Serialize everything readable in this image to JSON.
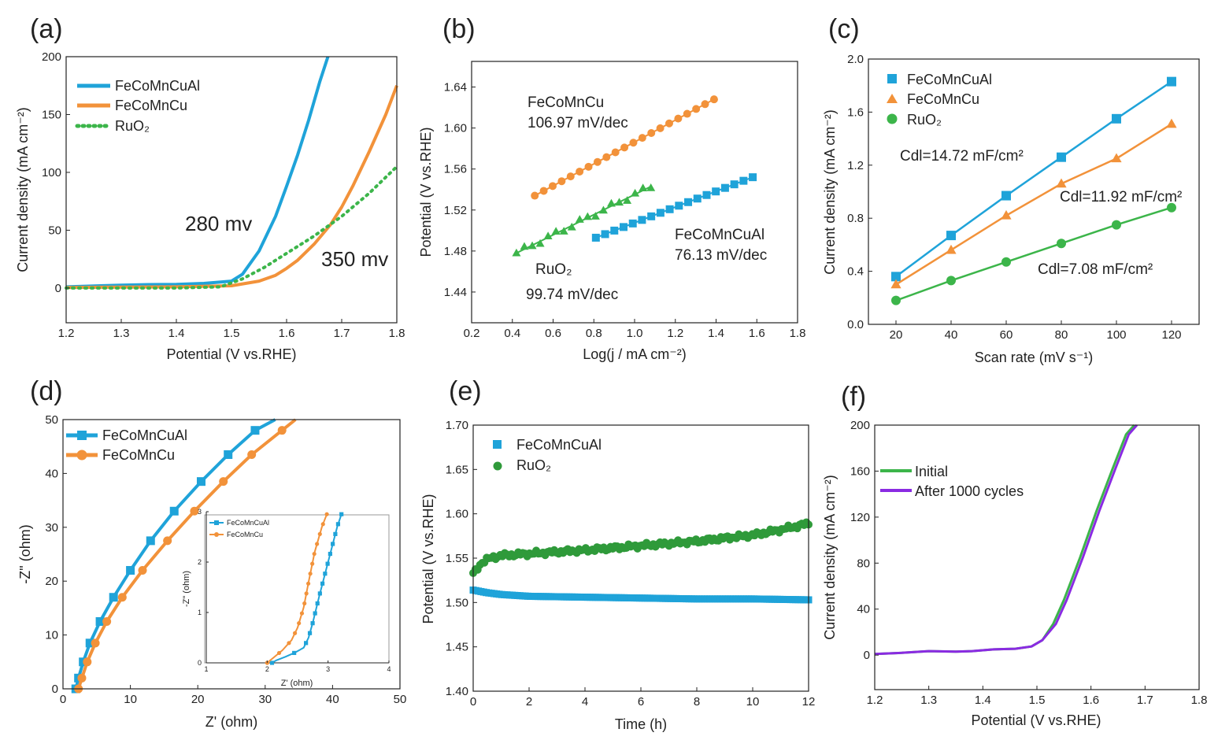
{
  "colors": {
    "blue": "#1fa3d9",
    "orange": "#f2923a",
    "green": "#3cb54a",
    "dark_green": "#2f9a3a",
    "purple": "#8a2be2",
    "axis": "#222222"
  },
  "chart_data": [
    {
      "id": "a",
      "type": "line",
      "panel_label": "(a)",
      "xlabel": "Potential (V vs.RHE)",
      "ylabel": "Current density (mA cm⁻²)",
      "xlim": [
        1.2,
        1.8
      ],
      "ylim": [
        -30,
        200
      ],
      "xticks": [
        1.2,
        1.3,
        1.4,
        1.5,
        1.6,
        1.7,
        1.8
      ],
      "xtick_labels": [
        "1.2",
        "1.3",
        "1.4",
        "1.5",
        "1.6",
        "1.7",
        "1.8"
      ],
      "yticks": [
        0,
        50,
        100,
        150,
        200
      ],
      "ytick_labels": [
        "0",
        "50",
        "100",
        "150",
        "200"
      ],
      "legend": [
        "FeCoMnCuAl",
        "FeCoMnCu",
        "RuO₂"
      ],
      "series": [
        {
          "name": "FeCoMnCuAl",
          "color": "blue",
          "style": "solid",
          "x": [
            1.2,
            1.3,
            1.35,
            1.4,
            1.45,
            1.5,
            1.52,
            1.55,
            1.58,
            1.6,
            1.62,
            1.64,
            1.66,
            1.675
          ],
          "y": [
            1,
            2.5,
            3,
            3.2,
            4,
            6,
            12,
            32,
            62,
            88,
            115,
            145,
            178,
            200
          ]
        },
        {
          "name": "FeCoMnCu",
          "color": "orange",
          "style": "solid",
          "x": [
            1.2,
            1.3,
            1.4,
            1.5,
            1.55,
            1.58,
            1.6,
            1.62,
            1.65,
            1.68,
            1.7,
            1.72,
            1.75,
            1.78,
            1.8
          ],
          "y": [
            0.5,
            0.8,
            1,
            2,
            6,
            11,
            17,
            24,
            38,
            55,
            70,
            88,
            118,
            150,
            175
          ]
        },
        {
          "name": "RuO₂",
          "color": "green",
          "style": "dotted",
          "x": [
            1.2,
            1.4,
            1.48,
            1.52,
            1.56,
            1.6,
            1.65,
            1.7,
            1.75,
            1.8
          ],
          "y": [
            0,
            0,
            1,
            8,
            18,
            30,
            45,
            62,
            82,
            105
          ]
        }
      ],
      "annotations": [
        {
          "text": "280 mv",
          "color": "blue"
        },
        {
          "text": "350 mv",
          "color": "orange"
        }
      ]
    },
    {
      "id": "b",
      "type": "scatter",
      "panel_label": "(b)",
      "xlabel": "Log(j / mA cm⁻²)",
      "ylabel": "Potential (V vs.RHE)",
      "xlim": [
        0.2,
        1.8
      ],
      "ylim": [
        1.41,
        1.665
      ],
      "xticks": [
        0.2,
        0.4,
        0.6,
        0.8,
        1.0,
        1.2,
        1.4,
        1.6,
        1.8
      ],
      "xtick_labels": [
        "0.2",
        "0.4",
        "0.6",
        "0.8",
        "1.0",
        "1.2",
        "1.4",
        "1.6",
        "1.8"
      ],
      "yticks": [
        1.44,
        1.48,
        1.52,
        1.56,
        1.6,
        1.64
      ],
      "ytick_labels": [
        "1.44",
        "1.48",
        "1.52",
        "1.56",
        "1.60",
        "1.64"
      ],
      "series": [
        {
          "name": "FeCoMnCu",
          "color": "orange",
          "marker": "circle",
          "x_range": [
            0.51,
            1.39
          ],
          "y_range": [
            1.534,
            1.628
          ],
          "n": 21
        },
        {
          "name": "RuO₂",
          "color": "green",
          "marker": "triangle",
          "x_range": [
            0.42,
            1.08
          ],
          "y_range": [
            1.478,
            1.543
          ],
          "n": 18
        },
        {
          "name": "FeCoMnCuAl",
          "color": "blue",
          "marker": "square",
          "x_range": [
            0.81,
            1.58
          ],
          "y_range": [
            1.493,
            1.552
          ],
          "n": 18
        }
      ],
      "annotations": [
        {
          "series": "FeCoMnCu",
          "name": "FeCoMnCu",
          "slope": "106.97 mV/dec"
        },
        {
          "series": "FeCoMnCuAl",
          "name": "FeCoMnCuAl",
          "slope": "76.13 mV/dec"
        },
        {
          "series": "RuO₂",
          "name": "RuO₂",
          "slope": "99.74 mV/dec"
        }
      ]
    },
    {
      "id": "c",
      "type": "scatter",
      "panel_label": "(c)",
      "xlabel": "Scan rate (mV s⁻¹)",
      "ylabel": "Current density (mA cm⁻²)",
      "xlim": [
        10,
        130
      ],
      "ylim": [
        0,
        2.0
      ],
      "xticks": [
        20,
        40,
        60,
        80,
        100,
        120
      ],
      "xtick_labels": [
        "20",
        "40",
        "60",
        "80",
        "100",
        "120"
      ],
      "yticks": [
        0,
        0.4,
        0.8,
        1.2,
        1.6,
        2.0
      ],
      "ytick_labels": [
        "0.0",
        "0.4",
        "0.8",
        "1.2",
        "1.6",
        "2.0"
      ],
      "legend": [
        "FeCoMnCuAl",
        "FeCoMnCu",
        "RuO₂"
      ],
      "x": [
        20,
        40,
        60,
        80,
        100,
        120
      ],
      "series": [
        {
          "name": "FeCoMnCuAl",
          "color": "blue",
          "marker": "square",
          "values": [
            0.36,
            0.67,
            0.97,
            1.26,
            1.55,
            1.83
          ]
        },
        {
          "name": "FeCoMnCu",
          "color": "orange",
          "marker": "triangle",
          "values": [
            0.3,
            0.56,
            0.82,
            1.06,
            1.25,
            1.51
          ]
        },
        {
          "name": "RuO₂",
          "color": "green",
          "marker": "circle",
          "values": [
            0.18,
            0.33,
            0.47,
            0.61,
            0.75,
            0.88
          ]
        }
      ],
      "annotations": [
        {
          "text": "Cdl=14.72 mF/cm²",
          "color": "blue"
        },
        {
          "text": "Cdl=11.92 mF/cm²",
          "color": "orange"
        },
        {
          "text": "Cdl=7.08 mF/cm²",
          "color": "green"
        }
      ]
    },
    {
      "id": "d",
      "type": "line",
      "panel_label": "(d)",
      "xlabel": "Z' (ohm)",
      "ylabel": "-Z\" (ohm)",
      "xlim": [
        0,
        50
      ],
      "ylim": [
        0,
        50
      ],
      "xticks": [
        0,
        10,
        20,
        30,
        40,
        50
      ],
      "xtick_labels": [
        "0",
        "10",
        "20",
        "30",
        "40",
        "50"
      ],
      "yticks": [
        0,
        10,
        20,
        30,
        40,
        50
      ],
      "ytick_labels": [
        "0",
        "10",
        "20",
        "30",
        "40",
        "50"
      ],
      "legend": [
        "FeCoMnCuAl",
        "FeCoMnCu"
      ],
      "series": [
        {
          "name": "FeCoMnCuAl",
          "color": "blue",
          "marker": "square",
          "x": [
            1.9,
            2.3,
            3,
            4,
            5.5,
            7.5,
            10,
            13,
            16.5,
            20.5,
            24.5,
            28.5,
            31.5
          ],
          "y": [
            0,
            2,
            5,
            8.5,
            12.5,
            17,
            22,
            27.5,
            33,
            38.5,
            43.5,
            48,
            50
          ]
        },
        {
          "name": "FeCoMnCu",
          "color": "orange",
          "marker": "circle",
          "x": [
            2.3,
            2.8,
            3.6,
            4.8,
            6.5,
            8.8,
            11.8,
            15.5,
            19.5,
            23.8,
            28,
            32.5,
            34.5
          ],
          "y": [
            0,
            2,
            5,
            8.5,
            12.5,
            17,
            22,
            27.5,
            33,
            38.5,
            43.5,
            48,
            50
          ]
        }
      ],
      "inset": {
        "xlim": [
          1,
          4
        ],
        "ylim": [
          0,
          3
        ],
        "xticks": [
          1,
          2,
          3,
          4
        ],
        "xtick_labels": [
          "1",
          "2",
          "3",
          "4"
        ],
        "yticks": [
          0,
          1,
          2,
          3
        ],
        "ytick_labels": [
          "0",
          "1",
          "2",
          "3"
        ],
        "xlabel": "Z' (ohm)",
        "ylabel": "-Z\" (ohm)",
        "legend": [
          "FeCoMnCuAl",
          "FeCoMnCu"
        ],
        "series": [
          {
            "name": "FeCoMnCuAl",
            "color": "blue",
            "x": [
              2.08,
              2.15,
              2.3,
              2.45,
              2.6,
              2.68,
              2.75,
              2.85,
              3.0,
              3.15,
              3.22
            ],
            "y": [
              0,
              0.05,
              0.12,
              0.2,
              0.3,
              0.5,
              0.8,
              1.3,
              2.0,
              2.7,
              2.95
            ]
          },
          {
            "name": "FeCoMnCu",
            "color": "orange",
            "x": [
              2.0,
              2.1,
              2.25,
              2.4,
              2.5,
              2.6,
              2.68,
              2.78,
              2.9,
              2.98
            ],
            "y": [
              0,
              0.1,
              0.25,
              0.45,
              0.7,
              1.1,
              1.6,
              2.2,
              2.7,
              2.95
            ]
          }
        ]
      }
    },
    {
      "id": "e",
      "type": "scatter",
      "panel_label": "(e)",
      "xlabel": "Time (h)",
      "ylabel": "Potential (V vs.RHE)",
      "xlim": [
        0,
        12
      ],
      "ylim": [
        1.4,
        1.7
      ],
      "xticks": [
        0,
        2,
        4,
        6,
        8,
        10,
        12
      ],
      "xtick_labels": [
        "0",
        "2",
        "4",
        "6",
        "8",
        "10",
        "12"
      ],
      "yticks": [
        1.4,
        1.45,
        1.5,
        1.55,
        1.6,
        1.65,
        1.7
      ],
      "ytick_labels": [
        "1.40",
        "1.45",
        "1.50",
        "1.55",
        "1.60",
        "1.65",
        "1.70"
      ],
      "legend": [
        "FeCoMnCuAl",
        "RuO₂"
      ],
      "series": [
        {
          "name": "FeCoMnCuAl",
          "color": "blue",
          "marker": "square",
          "x": [
            0,
            0.5,
            1,
            2,
            4,
            6,
            8,
            10,
            12
          ],
          "y": [
            1.514,
            1.511,
            1.509,
            1.507,
            1.506,
            1.505,
            1.504,
            1.504,
            1.503
          ]
        },
        {
          "name": "RuO₂",
          "color": "dark_green",
          "marker": "circle",
          "x": [
            0,
            0.3,
            0.6,
            1,
            2,
            4,
            6,
            8,
            10,
            11,
            12
          ],
          "y": [
            1.532,
            1.545,
            1.55,
            1.553,
            1.555,
            1.559,
            1.564,
            1.569,
            1.576,
            1.582,
            1.589
          ]
        }
      ]
    },
    {
      "id": "f",
      "type": "line",
      "panel_label": "(f)",
      "xlabel": "Potential (V vs.RHE)",
      "ylabel": "Current density (mA cm⁻²)",
      "xlim": [
        1.2,
        1.8
      ],
      "ylim": [
        -30,
        200
      ],
      "xticks": [
        1.2,
        1.3,
        1.4,
        1.5,
        1.6,
        1.7,
        1.8
      ],
      "xtick_labels": [
        "1.2",
        "1.3",
        "1.4",
        "1.5",
        "1.6",
        "1.7",
        "1.8"
      ],
      "yticks": [
        0,
        40,
        80,
        120,
        160,
        200
      ],
      "ytick_labels": [
        "0",
        "40",
        "80",
        "120",
        "160",
        "200"
      ],
      "legend": [
        "Initial",
        "After 1000 cycles"
      ],
      "series": [
        {
          "name": "Initial",
          "color": "green",
          "x": [
            1.2,
            1.25,
            1.3,
            1.35,
            1.38,
            1.42,
            1.46,
            1.49,
            1.51,
            1.53,
            1.55,
            1.58,
            1.61,
            1.64,
            1.665,
            1.68
          ],
          "y": [
            1,
            2,
            3.5,
            3,
            3.5,
            5,
            5.5,
            7.5,
            13,
            27,
            48,
            85,
            125,
            162,
            192,
            200
          ]
        },
        {
          "name": "After 1000 cycles",
          "color": "purple",
          "x": [
            1.2,
            1.25,
            1.3,
            1.35,
            1.38,
            1.42,
            1.46,
            1.49,
            1.51,
            1.535,
            1.555,
            1.585,
            1.615,
            1.645,
            1.67,
            1.685
          ],
          "y": [
            1,
            2,
            3.5,
            3,
            3.5,
            5,
            5.5,
            7.5,
            13,
            27,
            48,
            85,
            125,
            162,
            192,
            200
          ]
        }
      ]
    }
  ]
}
